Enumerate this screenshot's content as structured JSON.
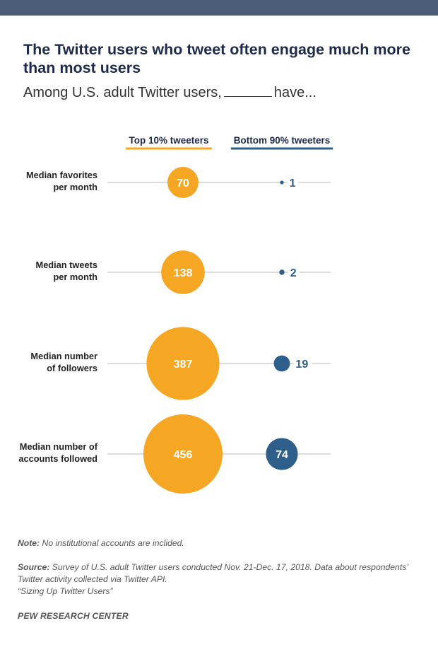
{
  "title": "The Twitter users who tweet often engage much more than most users",
  "subtitle_prefix": "Among U.S. adult Twitter users,",
  "subtitle_suffix": "have...",
  "note_label": "Note:",
  "note_text": " No institutional accounts are inclided.",
  "source_label": "Source:",
  "source_text": " Survey of U.S. adult Twitter users conducted Nov. 21-Dec. 17, 2018. Data about respondents’ Twitter activity collected via Twitter API.",
  "source_report": "“Sizing Up Twitter Users”",
  "footer": "PEW RESEARCH CENTER",
  "chart_data": {
    "type": "bubble",
    "categories": [
      [
        "Median favorites",
        "per month"
      ],
      [
        "Median tweets",
        "per month"
      ],
      [
        "Median number",
        "of followers"
      ],
      [
        "Median number of",
        "accounts followed"
      ]
    ],
    "series": [
      {
        "name": "Top 10% tweeters",
        "color": "#f5a623",
        "values": [
          70,
          138,
          387,
          456
        ]
      },
      {
        "name": "Bottom 90% tweeters",
        "color": "#2e5f8a",
        "values": [
          1,
          2,
          19,
          74
        ]
      }
    ]
  }
}
